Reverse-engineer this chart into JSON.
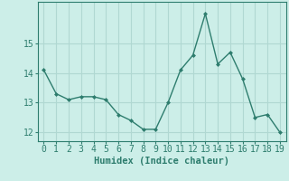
{
  "x": [
    0,
    1,
    2,
    3,
    4,
    5,
    6,
    7,
    8,
    9,
    10,
    11,
    12,
    13,
    14,
    15,
    16,
    17,
    18,
    19
  ],
  "y": [
    14.1,
    13.3,
    13.1,
    13.2,
    13.2,
    13.1,
    12.6,
    12.4,
    12.1,
    12.1,
    13.0,
    14.1,
    14.6,
    16.0,
    14.3,
    14.7,
    13.8,
    12.5,
    12.6,
    12.0
  ],
  "line_color": "#2e7d6e",
  "marker_color": "#2e7d6e",
  "bg_color": "#cceee8",
  "grid_color": "#b0d8d2",
  "xlabel": "Humidex (Indice chaleur)",
  "xlim": [
    -0.5,
    19.5
  ],
  "ylim": [
    11.7,
    16.4
  ],
  "yticks": [
    12,
    13,
    14,
    15
  ],
  "xticks": [
    0,
    1,
    2,
    3,
    4,
    5,
    6,
    7,
    8,
    9,
    10,
    11,
    12,
    13,
    14,
    15,
    16,
    17,
    18,
    19
  ],
  "xlabel_fontsize": 7.5,
  "tick_fontsize": 7
}
